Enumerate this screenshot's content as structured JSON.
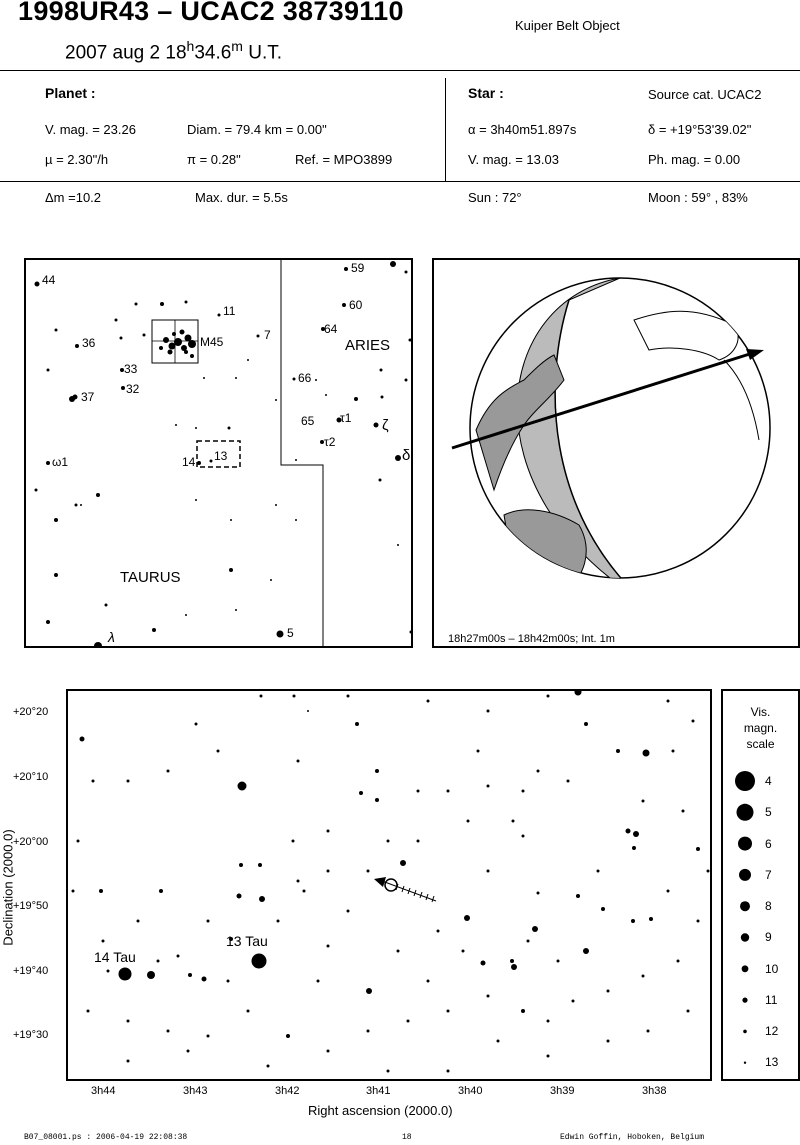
{
  "header": {
    "title": "1998UR43  –  UCAC2 38739110",
    "subtitle": "Kuiper Belt Object",
    "date_text": "2007 aug  2  18",
    "hour_sup": "h",
    "minutes": "34.6",
    "minute_sup": "m",
    "time_suffix": " U.T."
  },
  "planet": {
    "heading": "Planet :",
    "vmag": "V. mag. = 23.26",
    "diam": "Diam. = 79.4 km = 0.00\"",
    "mu": "µ =  2.30\"/h",
    "pi": "π =  0.28\"",
    "ref": "Ref. = MPO3899",
    "dm": "Δm =10.2",
    "maxdur": "Max. dur. = 5.5s"
  },
  "star": {
    "heading": "Star :",
    "source": "Source cat.  UCAC2",
    "alpha": "α =  3h40m51.897s",
    "delta": "δ = +19°53'39.02\"",
    "vmag": "V. mag. = 13.03",
    "phmag": "Ph. mag. =  0.00",
    "sun": "Sun :  72°",
    "moon": "Moon :  59° , 83%"
  },
  "finder": {
    "labels": [
      "44",
      "59",
      "60",
      "11",
      "64",
      "7",
      "36",
      "M45",
      "ARIES",
      "33",
      "66",
      "32",
      "37",
      "65",
      "τ1",
      "ζ",
      "τ2",
      "ω1",
      "14",
      "13",
      "δ",
      "TAURUS",
      "5",
      "λ"
    ]
  },
  "globe": {
    "caption": "18h27m00s – 18h42m00s; Int.  1m"
  },
  "chart": {
    "y_title": "Declination (2000.0)",
    "x_title": "Right ascension (2000.0)",
    "y_ticks": [
      "+20°20",
      "+20°10",
      "+20°00",
      "+19°50",
      "+19°40",
      "+19°30"
    ],
    "x_ticks": [
      "3h44",
      "3h43",
      "3h42",
      "3h41",
      "3h40",
      "3h39",
      "3h38"
    ],
    "star_labels": [
      "14 Tau",
      "13 Tau"
    ]
  },
  "legend": {
    "title1": "Vis.",
    "title2": "magn.",
    "title3": "scale",
    "mags": [
      "4",
      "5",
      "6",
      "7",
      "8",
      "9",
      "10",
      "11",
      "12",
      "13"
    ]
  },
  "footer": {
    "file": "B07_08001.ps : 2006-04-19 22:08:38",
    "page": "18",
    "author": "Edwin Goffin, Hoboken, Belgium"
  }
}
